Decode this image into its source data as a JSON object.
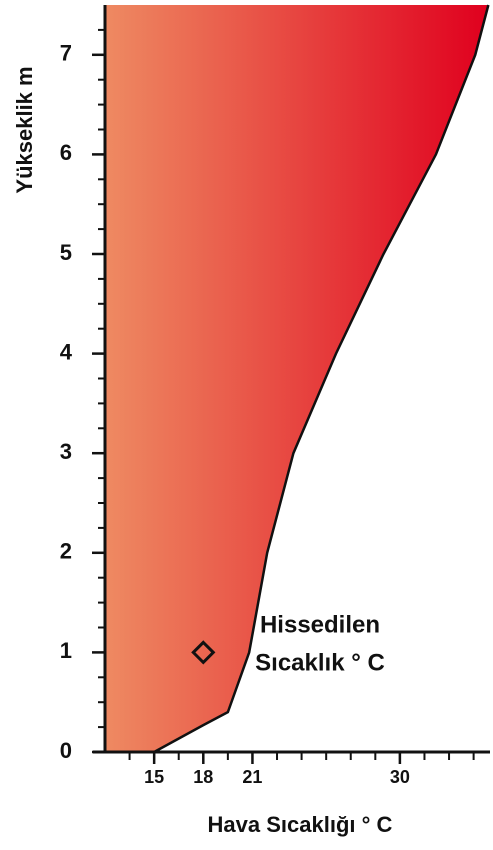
{
  "chart_data": {
    "type": "area",
    "xlabel": "Hava Sıcaklığı ° C",
    "ylabel": "Yükseklik m",
    "x": [
      15,
      18,
      19.5,
      20.8,
      21.9,
      23.5,
      26.1,
      29.0,
      32.2,
      34.6,
      35.4
    ],
    "values": [
      0,
      0.27,
      0.4,
      1,
      2,
      3,
      4,
      5,
      6,
      7,
      7.5
    ],
    "gradient": [
      "#ee8a62",
      "#e0001e"
    ],
    "xlim": [
      12,
      35.5
    ],
    "ylim": [
      0,
      7.5
    ],
    "xticks": [
      15,
      18,
      21,
      30
    ],
    "xminorticks": [
      13.5,
      15,
      16.5,
      18,
      19.5,
      21,
      22.5,
      24,
      25.5,
      27,
      28.5,
      30,
      31.5,
      33,
      34.5
    ],
    "yticks": [
      0,
      1,
      2,
      3,
      4,
      5,
      6,
      7
    ],
    "yminorticks": [
      0.25,
      0.5,
      0.75,
      1.25,
      1.5,
      1.75,
      2.25,
      2.5,
      2.75,
      3.25,
      3.5,
      3.75,
      4.25,
      4.5,
      4.75,
      5.25,
      5.5,
      5.75,
      6.25,
      6.5,
      6.75,
      7.25
    ],
    "marker": {
      "x": 18,
      "y": 1,
      "label": [
        "Hissedilen",
        "Sıcaklık ° C"
      ]
    }
  }
}
